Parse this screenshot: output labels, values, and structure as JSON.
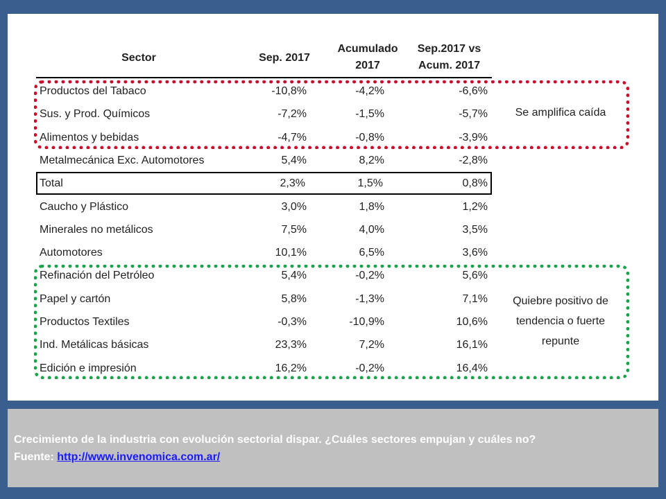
{
  "chart_data": {
    "type": "table",
    "columns": [
      "Sector",
      "Sep. 2017",
      "Acumulado 2017",
      "Sep.2017 vs Acum. 2017"
    ],
    "header_lines": {
      "sector": [
        "Sector"
      ],
      "sep": [
        "Sep. 2017"
      ],
      "acum": [
        "Acumulado",
        "2017"
      ],
      "vs": [
        "Sep.2017 vs",
        "Acum. 2017"
      ]
    },
    "rows": [
      {
        "sector": "Productos del Tabaco",
        "sep": "-10,8%",
        "acum": "-4,2%",
        "vs": "-6,6%"
      },
      {
        "sector": "Sus. y Prod. Químicos",
        "sep": "-7,2%",
        "acum": "-1,5%",
        "vs": "-5,7%"
      },
      {
        "sector": "Alimentos y bebidas",
        "sep": "-4,7%",
        "acum": "-0,8%",
        "vs": "-3,9%"
      },
      {
        "sector": "Metalmecánica Exc. Automotores",
        "sep": "5,4%",
        "acum": "8,2%",
        "vs": "-2,8%"
      },
      {
        "sector": "Total",
        "sep": "2,3%",
        "acum": "1,5%",
        "vs": "0,8%"
      },
      {
        "sector": "Caucho y Plástico",
        "sep": "3,0%",
        "acum": "1,8%",
        "vs": "1,2%"
      },
      {
        "sector": "Minerales no metálicos",
        "sep": "7,5%",
        "acum": "4,0%",
        "vs": "3,5%"
      },
      {
        "sector": "Automotores",
        "sep": "10,1%",
        "acum": "6,5%",
        "vs": "3,6%"
      },
      {
        "sector": "Refinación del Petróleo",
        "sep": "5,4%",
        "acum": "-0,2%",
        "vs": "5,6%"
      },
      {
        "sector": "Papel y cartón",
        "sep": "5,8%",
        "acum": "-1,3%",
        "vs": "7,1%"
      },
      {
        "sector": "Productos Textiles",
        "sep": "-0,3%",
        "acum": "-10,9%",
        "vs": "10,6%"
      },
      {
        "sector": "Ind. Metálicas básicas",
        "sep": "23,3%",
        "acum": "7,2%",
        "vs": "16,1%"
      },
      {
        "sector": "Edición e impresión",
        "sep": "16,2%",
        "acum": "-0,2%",
        "vs": "16,4%"
      }
    ],
    "annotations": [
      {
        "text": "Se amplifica caída",
        "rows": [
          0,
          2
        ],
        "color": "#c8102e"
      },
      {
        "text": "Quiebre positivo de tendencia o fuerte repunte",
        "lines": [
          "Quiebre positivo de",
          "tendencia o fuerte",
          "repunte"
        ],
        "rows": [
          8,
          12
        ],
        "color": "#1aa34a"
      }
    ]
  },
  "caption": {
    "text": "Crecimiento de la industria con evolución sectorial dispar. ¿Cuáles sectores empujan y cuáles no?",
    "source_label": "Fuente:",
    "source_link": "http://www.invenomica.com.ar/"
  },
  "colors": {
    "background": "#3a5f8f",
    "caption_bg": "#c0c0c0",
    "highlight_negative": "#c8102e",
    "highlight_positive": "#1aa34a",
    "link": "#1a1aff"
  }
}
